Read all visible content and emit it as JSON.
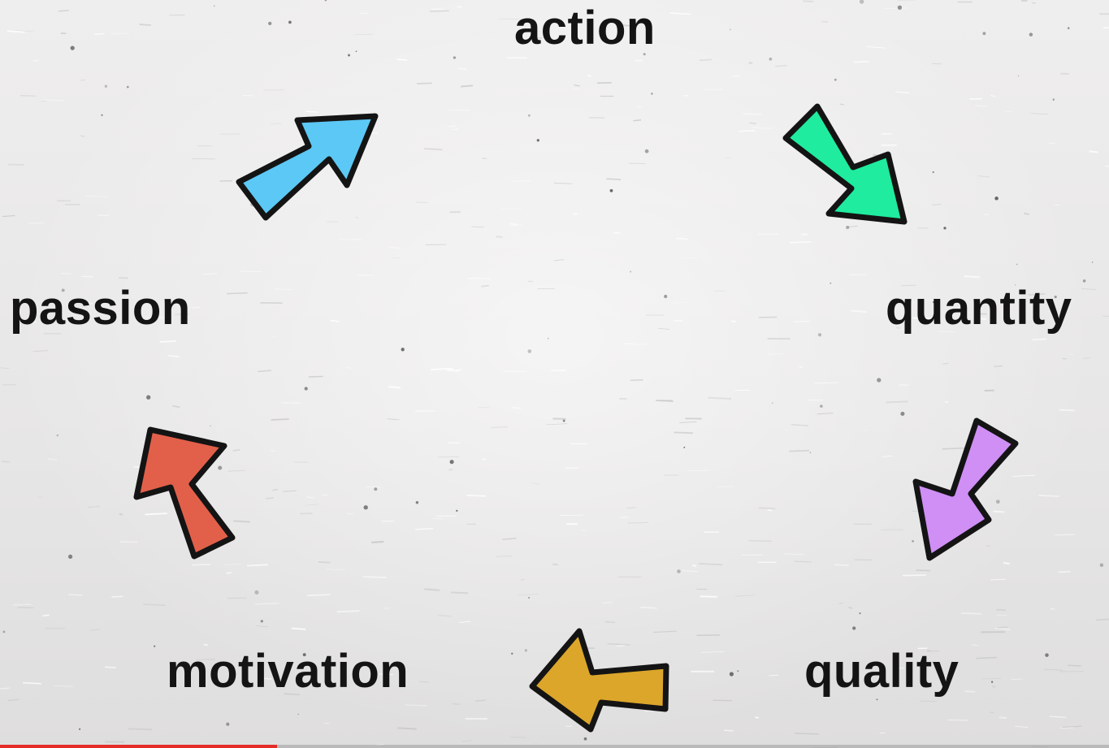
{
  "diagram": {
    "nodes": [
      {
        "id": "action",
        "label": "action"
      },
      {
        "id": "quantity",
        "label": "quantity"
      },
      {
        "id": "quality",
        "label": "quality"
      },
      {
        "id": "motivation",
        "label": "motivation"
      },
      {
        "id": "passion",
        "label": "passion"
      }
    ],
    "arrows": [
      {
        "from": "passion",
        "to": "action",
        "color": "#5cc8f5",
        "icon": "arrow-up-right-icon"
      },
      {
        "from": "action",
        "to": "quantity",
        "color": "#1fec9e",
        "icon": "arrow-down-right-icon"
      },
      {
        "from": "quantity",
        "to": "quality",
        "color": "#cf8ff5",
        "icon": "arrow-down-left-icon"
      },
      {
        "from": "quality",
        "to": "motivation",
        "color": "#dca62b",
        "icon": "arrow-left-icon"
      },
      {
        "from": "motivation",
        "to": "passion",
        "color": "#e2604a",
        "icon": "arrow-up-left-icon"
      }
    ]
  },
  "video_progress": {
    "fraction": 0.25,
    "color": "#e52d27"
  },
  "background_color": "#e9e8e8",
  "text_color": "#141414"
}
